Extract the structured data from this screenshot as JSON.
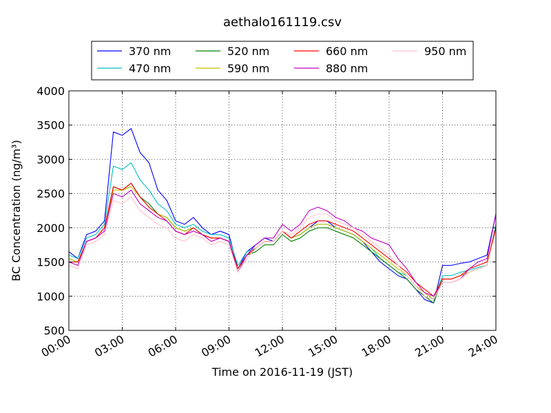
{
  "chart_data": {
    "type": "line",
    "title": "aethalo161119.csv",
    "xlabel": "Time on 2016-11-19 (JST)",
    "ylabel": "BC Concentration (ng/m³)",
    "ylim": [
      500,
      4000
    ],
    "xlim": [
      "00:00",
      "24:00"
    ],
    "x_ticks": [
      "00:00",
      "03:00",
      "06:00",
      "09:00",
      "12:00",
      "15:00",
      "18:00",
      "21:00",
      "24:00"
    ],
    "y_ticks": [
      "500",
      "1000",
      "1500",
      "2000",
      "2500",
      "3000",
      "3500",
      "4000"
    ],
    "grid": true,
    "legend_position": "top",
    "x": [
      "00:00",
      "00:30",
      "01:00",
      "01:30",
      "02:00",
      "02:30",
      "03:00",
      "03:30",
      "04:00",
      "04:30",
      "05:00",
      "05:30",
      "06:00",
      "06:30",
      "07:00",
      "07:30",
      "08:00",
      "08:30",
      "09:00",
      "09:30",
      "10:00",
      "10:30",
      "11:00",
      "11:30",
      "12:00",
      "12:30",
      "13:00",
      "13:30",
      "14:00",
      "14:30",
      "15:00",
      "15:30",
      "16:00",
      "16:30",
      "17:00",
      "17:30",
      "18:00",
      "18:30",
      "19:00",
      "19:30",
      "20:00",
      "20:30",
      "21:00",
      "21:30",
      "22:00",
      "22:30",
      "23:00",
      "23:30",
      "24:00"
    ],
    "series": [
      {
        "name": "370 nm",
        "color": "#0000ff",
        "values": [
          1650,
          1550,
          1900,
          1950,
          2100,
          3400,
          3350,
          3450,
          3100,
          2950,
          2550,
          2400,
          2100,
          2050,
          2150,
          2000,
          1900,
          1950,
          1900,
          1400,
          1650,
          1750,
          1850,
          1800,
          1950,
          1850,
          1900,
          2000,
          2100,
          2100,
          2000,
          1950,
          1900,
          1800,
          1650,
          1500,
          1400,
          1300,
          1250,
          1100,
          950,
          900,
          1450,
          1450,
          1480,
          1500,
          1550,
          1600,
          2200
        ]
      },
      {
        "name": "470 nm",
        "color": "#00bfbf",
        "values": [
          1600,
          1550,
          1850,
          1900,
          2050,
          2900,
          2850,
          2950,
          2700,
          2550,
          2350,
          2250,
          2050,
          2000,
          2050,
          1950,
          1900,
          1900,
          1850,
          1450,
          1650,
          1700,
          1800,
          1800,
          1950,
          1850,
          1900,
          2000,
          2050,
          2050,
          2000,
          1950,
          1900,
          1800,
          1700,
          1550,
          1450,
          1350,
          1300,
          1150,
          1000,
          950,
          1300,
          1300,
          1350,
          1380,
          1420,
          1450,
          2050
        ]
      },
      {
        "name": "520 nm",
        "color": "#008000",
        "values": [
          1550,
          1500,
          1800,
          1850,
          2000,
          2600,
          2550,
          2650,
          2450,
          2350,
          2200,
          2150,
          2000,
          1950,
          2000,
          1900,
          1850,
          1850,
          1800,
          1400,
          1600,
          1650,
          1750,
          1750,
          1900,
          1800,
          1850,
          1950,
          2000,
          2000,
          1950,
          1900,
          1850,
          1750,
          1650,
          1550,
          1450,
          1350,
          1250,
          1100,
          1000,
          900,
          1250,
          1250,
          1300,
          1350,
          1400,
          1450,
          2000
        ]
      },
      {
        "name": "590 nm",
        "color": "#bfbf00",
        "values": [
          1550,
          1500,
          1800,
          1850,
          2000,
          2550,
          2550,
          2600,
          2450,
          2300,
          2200,
          2150,
          2000,
          1950,
          2000,
          1900,
          1850,
          1850,
          1800,
          1400,
          1600,
          1700,
          1800,
          1800,
          1950,
          1850,
          1900,
          2000,
          2050,
          2050,
          2000,
          1950,
          1900,
          1800,
          1700,
          1600,
          1500,
          1400,
          1300,
          1150,
          1050,
          950,
          1250,
          1250,
          1300,
          1350,
          1400,
          1450,
          2000
        ]
      },
      {
        "name": "660 nm",
        "color": "#ff0000",
        "values": [
          1500,
          1500,
          1800,
          1850,
          2000,
          2600,
          2550,
          2650,
          2450,
          2300,
          2200,
          2100,
          1950,
          1900,
          2000,
          1900,
          1850,
          1850,
          1800,
          1400,
          1600,
          1700,
          1800,
          1800,
          1950,
          1850,
          1950,
          2050,
          2100,
          2100,
          2050,
          2000,
          1950,
          1850,
          1750,
          1650,
          1550,
          1450,
          1350,
          1200,
          1100,
          1000,
          1250,
          1250,
          1300,
          1400,
          1450,
          1500,
          2000
        ]
      },
      {
        "name": "880 nm",
        "color": "#bf00bf",
        "values": [
          1500,
          1450,
          1800,
          1850,
          1950,
          2500,
          2450,
          2550,
          2350,
          2250,
          2150,
          2100,
          1950,
          1900,
          1950,
          1900,
          1800,
          1850,
          1800,
          1350,
          1600,
          1750,
          1850,
          1850,
          2050,
          1950,
          2050,
          2250,
          2300,
          2250,
          2150,
          2100,
          2000,
          1950,
          1850,
          1800,
          1750,
          1550,
          1400,
          1200,
          1050,
          1000,
          1200,
          1200,
          1250,
          1400,
          1500,
          1550,
          2200
        ]
      },
      {
        "name": "950 nm",
        "color": "#ffc0cb",
        "values": [
          1450,
          1400,
          1750,
          1800,
          1900,
          2400,
          2350,
          2450,
          2250,
          2150,
          2050,
          2000,
          1850,
          1800,
          1900,
          1850,
          1750,
          1800,
          1750,
          1350,
          1550,
          1700,
          1800,
          1800,
          1950,
          1900,
          2000,
          2150,
          2200,
          2200,
          2100,
          2050,
          2000,
          1900,
          1800,
          1700,
          1600,
          1450,
          1300,
          1150,
          1000,
          950,
          1200,
          1200,
          1250,
          1350,
          1400,
          1450,
          1950
        ]
      }
    ]
  }
}
